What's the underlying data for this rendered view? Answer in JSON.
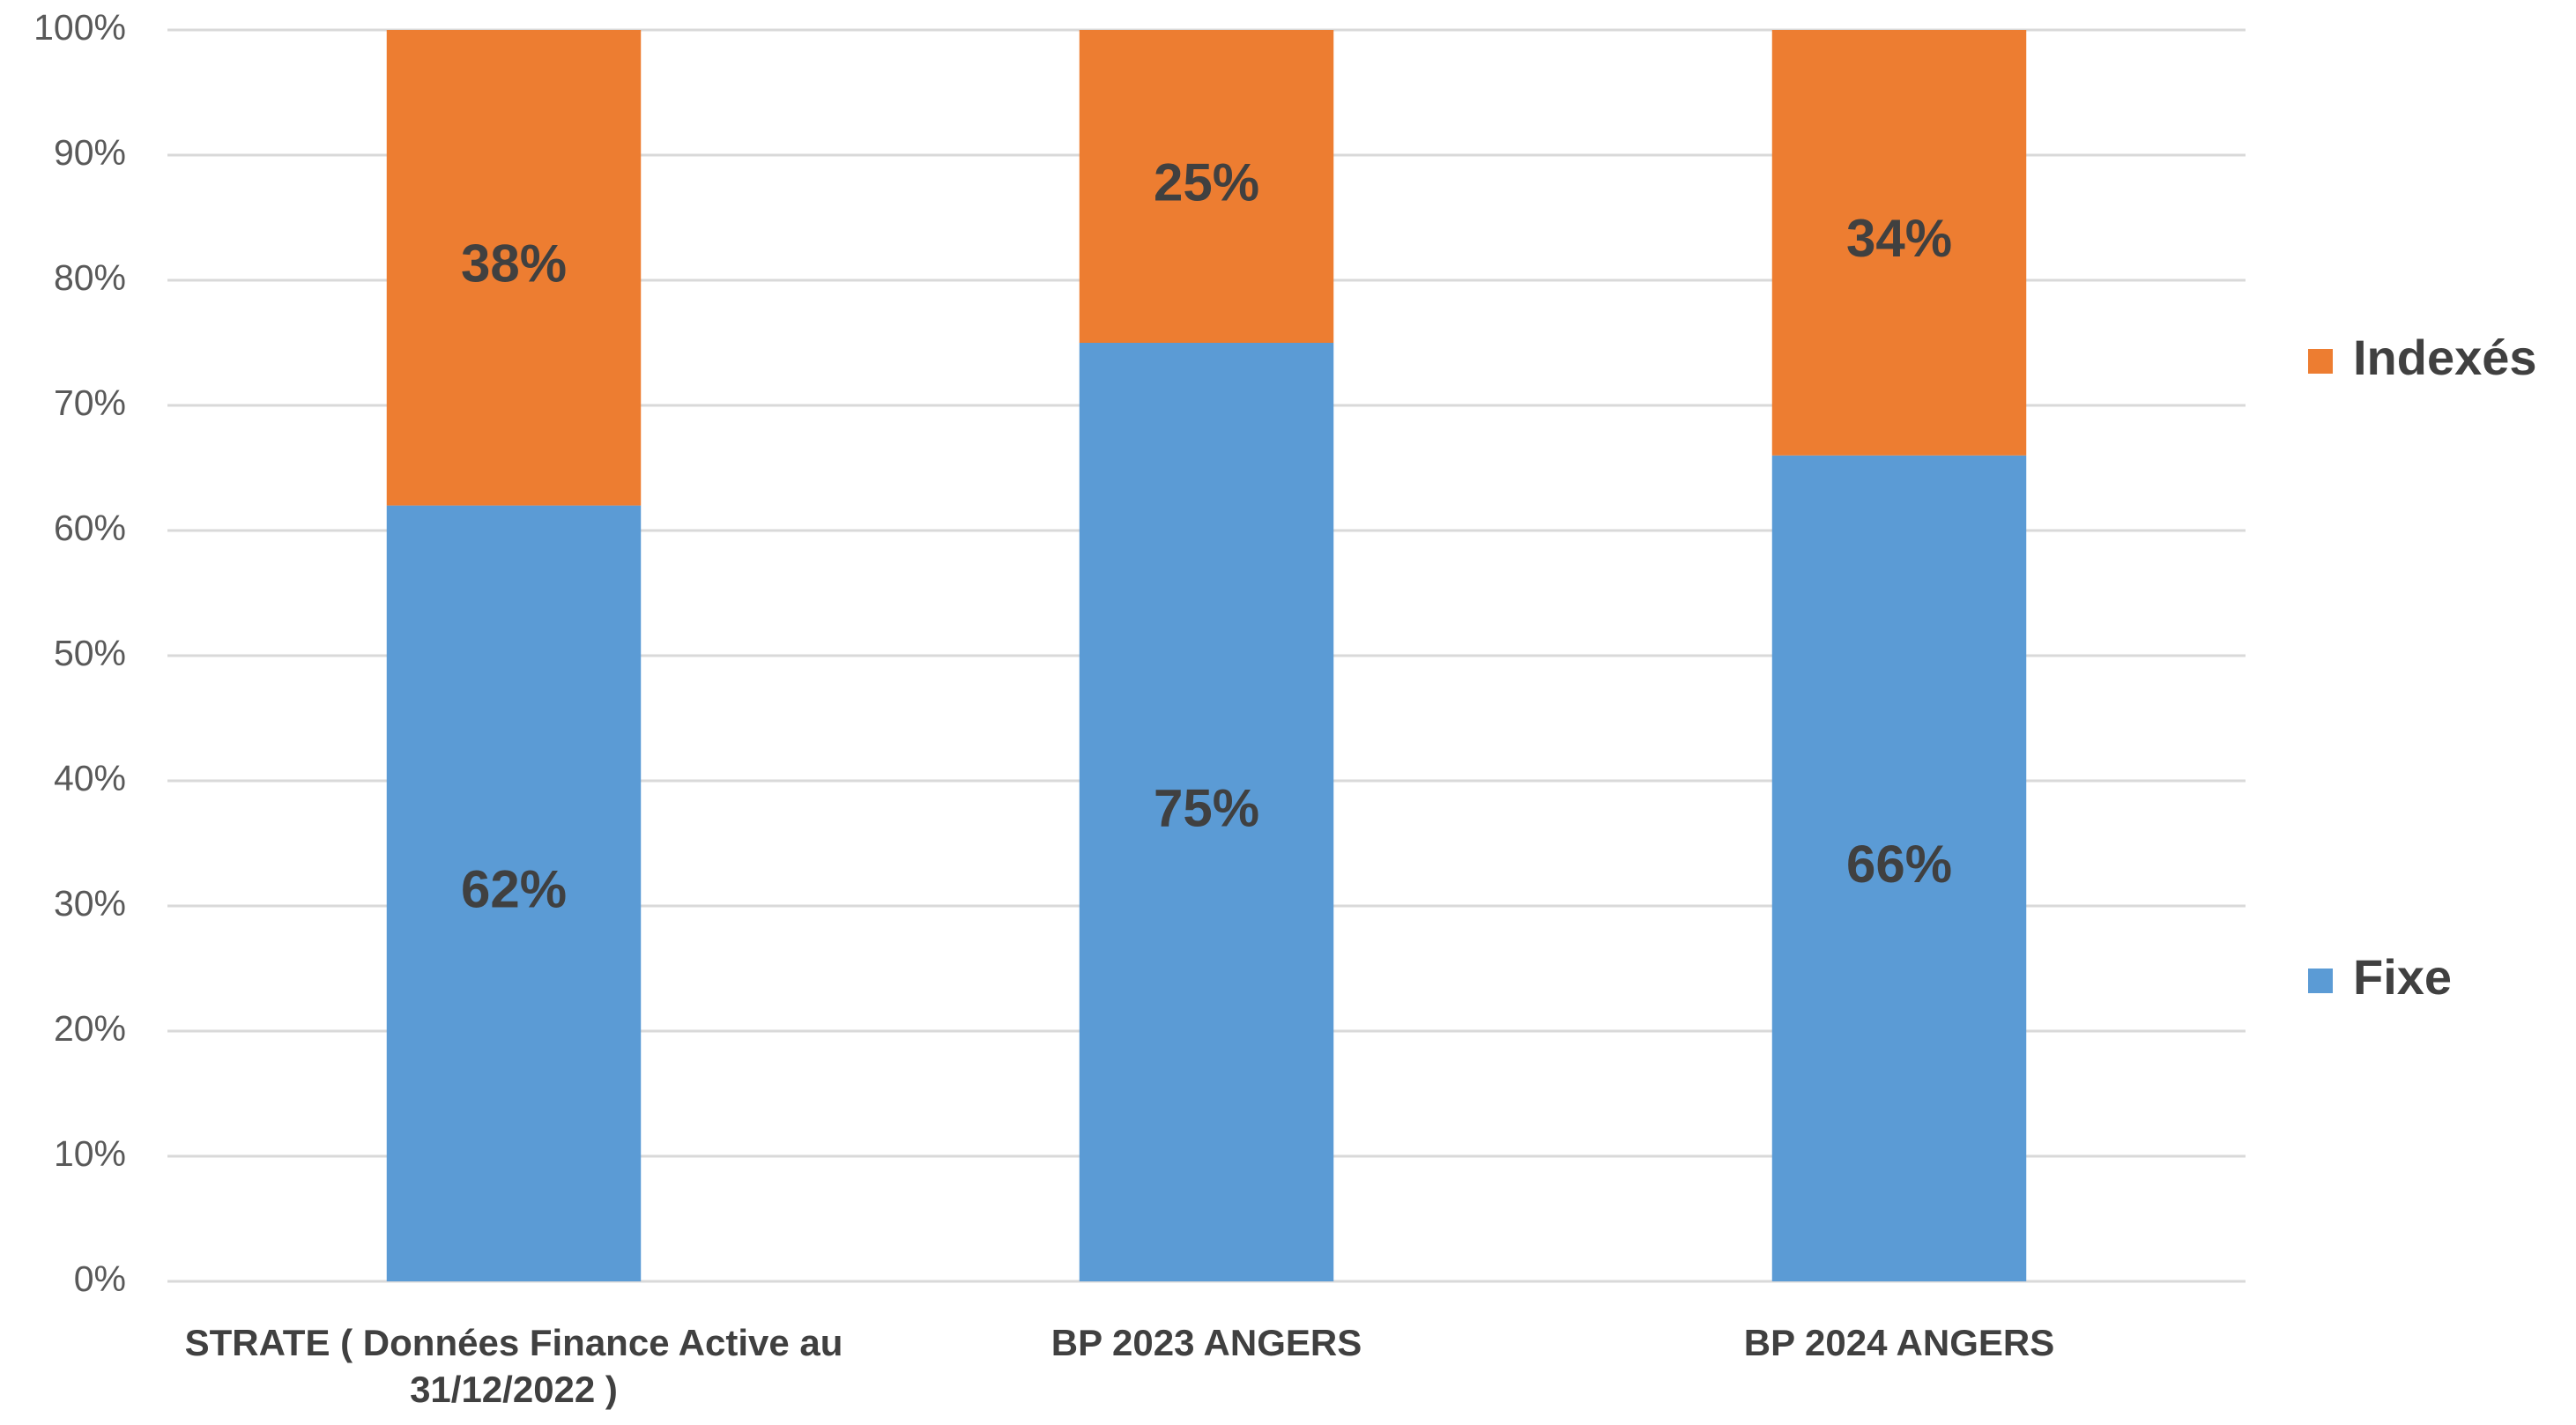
{
  "chart_data": {
    "type": "stacked_bar",
    "categories": [
      "STRATE ( Données Finance Active au 31/12/2022 )",
      "BP 2023 ANGERS",
      "BP 2024 ANGERS"
    ],
    "series": [
      {
        "name": "Fixe",
        "color": "#5b9bd5",
        "values": [
          62,
          75,
          66
        ],
        "value_labels": [
          "62%",
          "75%",
          "66%"
        ]
      },
      {
        "name": "Indexés",
        "color": "#ed7d31",
        "values": [
          38,
          25,
          34
        ],
        "value_labels": [
          "38%",
          "25%",
          "34%"
        ]
      }
    ],
    "ylim": [
      0,
      100
    ],
    "yticks": [
      {
        "value": 0,
        "label": "0%"
      },
      {
        "value": 10,
        "label": "10%"
      },
      {
        "value": 20,
        "label": "20%"
      },
      {
        "value": 30,
        "label": "30%"
      },
      {
        "value": 40,
        "label": "40%"
      },
      {
        "value": 50,
        "label": "50%"
      },
      {
        "value": 60,
        "label": "60%"
      },
      {
        "value": 70,
        "label": "70%"
      },
      {
        "value": 80,
        "label": "80%"
      },
      {
        "value": 90,
        "label": "90%"
      },
      {
        "value": 100,
        "label": "100%"
      }
    ],
    "grid": true,
    "legend": "right"
  }
}
